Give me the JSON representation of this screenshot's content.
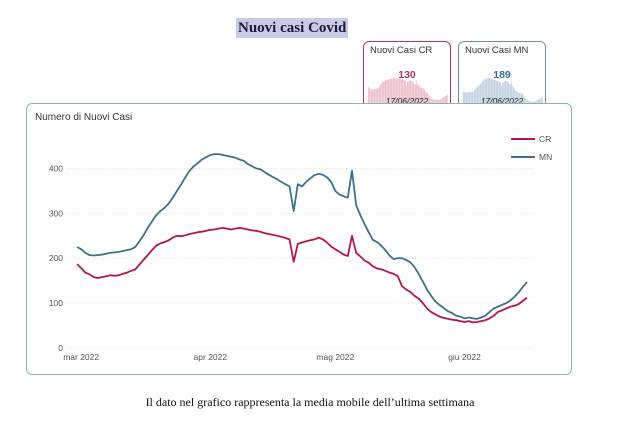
{
  "page": {
    "title": "Nuovi casi Covid",
    "caption": "Il dato nel grafico rappresenta la media mobile dell’ultima settimana"
  },
  "kpis": [
    {
      "label": "Nuovi Casi CR",
      "value": "130",
      "date": "17/06/2022",
      "color": "#b03a5b",
      "spark_color": "#e8b3c2"
    },
    {
      "label": "Nuovi Casi MN",
      "value": "189",
      "date": "17/06/2022",
      "color": "#3a6b98",
      "spark_color": "#b7c9da"
    }
  ],
  "chart_data": {
    "type": "line",
    "title": "Numero di Nuovi Casi",
    "xlabel": "",
    "ylabel": "",
    "ylim": [
      0,
      450
    ],
    "yticks": [
      0,
      100,
      200,
      300,
      400
    ],
    "x_start": "2022-02-28",
    "x_step_days": 1,
    "x_ticks": [
      {
        "date": "2022-03-01",
        "label": "mar 2022"
      },
      {
        "date": "2022-04-01",
        "label": "apr 2022"
      },
      {
        "date": "2022-05-01",
        "label": "mag 2022"
      },
      {
        "date": "2022-06-01",
        "label": "giu 2022"
      }
    ],
    "grid": "horizontal",
    "legend": "right",
    "series": [
      {
        "name": "CR",
        "color": "#b3164f",
        "values": [
          187,
          178,
          168,
          164,
          158,
          156,
          158,
          160,
          162,
          161,
          162,
          165,
          168,
          172,
          175,
          186,
          197,
          207,
          218,
          228,
          233,
          236,
          240,
          246,
          250,
          249,
          251,
          254,
          256,
          258,
          259,
          261,
          263,
          264,
          266,
          268,
          266,
          264,
          266,
          268,
          266,
          264,
          262,
          261,
          259,
          256,
          254,
          252,
          250,
          248,
          245,
          242,
          192,
          232,
          235,
          238,
          240,
          242,
          246,
          242,
          235,
          226,
          220,
          214,
          208,
          205,
          250,
          212,
          204,
          195,
          190,
          182,
          177,
          175,
          172,
          168,
          165,
          160,
          138,
          130,
          125,
          116,
          110,
          100,
          88,
          80,
          75,
          70,
          67,
          65,
          63,
          62,
          60,
          58,
          60,
          57,
          58,
          60,
          62,
          66,
          72,
          80,
          84,
          88,
          92,
          94,
          98,
          105,
          112
        ]
      },
      {
        "name": "MN",
        "color": "#3d7090",
        "values": [
          225,
          220,
          212,
          207,
          206,
          207,
          208,
          210,
          212,
          213,
          214,
          216,
          218,
          220,
          225,
          238,
          252,
          268,
          282,
          296,
          305,
          312,
          322,
          335,
          350,
          365,
          380,
          395,
          405,
          412,
          420,
          425,
          430,
          432,
          432,
          430,
          428,
          426,
          424,
          420,
          417,
          410,
          405,
          400,
          398,
          392,
          386,
          381,
          376,
          370,
          365,
          360,
          305,
          365,
          360,
          370,
          378,
          385,
          388,
          386,
          380,
          370,
          350,
          342,
          338,
          335,
          395,
          318,
          296,
          276,
          258,
          241,
          236,
          228,
          218,
          206,
          198,
          200,
          200,
          196,
          191,
          180,
          165,
          148,
          130,
          116,
          104,
          96,
          89,
          82,
          78,
          72,
          70,
          66,
          68,
          66,
          65,
          68,
          72,
          80,
          88,
          92,
          96,
          100,
          106,
          114,
          124,
          136,
          147
        ]
      }
    ]
  }
}
